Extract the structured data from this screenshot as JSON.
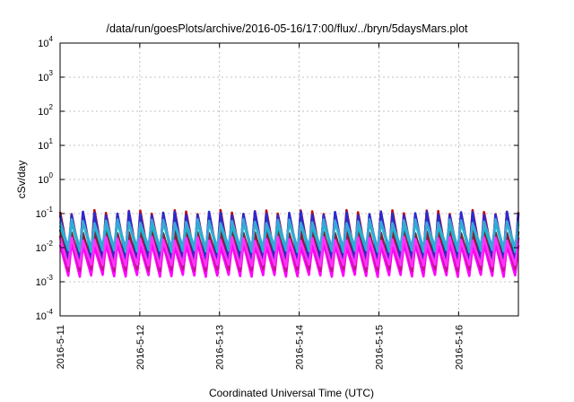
{
  "chart_data": {
    "type": "line",
    "title": "/data/run/goesPlots/archive/2016-05-16/17:00/flux/../bryn/5daysMars.plot",
    "xlabel": "Coordinated Universal Time (UTC)",
    "ylabel": "cSv/day",
    "x_range": [
      "2016-05-11",
      "2016-05-16 18:00"
    ],
    "x_tick_labels": [
      "2016-5-11",
      "2016-5-12",
      "2016-5-13",
      "2016-5-14",
      "2016-5-15",
      "2016-5-16"
    ],
    "y_scale": "log",
    "ylim": [
      0.0001,
      10000
    ],
    "y_ticks": [
      {
        "base": "10",
        "exp": "-4"
      },
      {
        "base": "10",
        "exp": "-3"
      },
      {
        "base": "10",
        "exp": "-2"
      },
      {
        "base": "10",
        "exp": "-1"
      },
      {
        "base": "10",
        "exp": "0"
      },
      {
        "base": "10",
        "exp": "1"
      },
      {
        "base": "10",
        "exp": "2"
      },
      {
        "base": "10",
        "exp": "3"
      },
      {
        "base": "10",
        "exp": "4"
      }
    ],
    "grid": true,
    "pattern": {
      "oscillations_per_day": 7,
      "note_values": "sawtooth oscillations between roughly 0.0015 and 0.11 cSv/day"
    },
    "series": [
      {
        "color": "#ff00ff",
        "peak": 0.012,
        "trough": 0.0015
      },
      {
        "color": "#c0168a",
        "peak": 0.02,
        "trough": 0.0022
      },
      {
        "color": "#8b1c3a",
        "peak": 0.03,
        "trough": 0.0035
      },
      {
        "color": "#c01010",
        "peak": 0.11,
        "trough": 0.006
      },
      {
        "color": "#2a2ad0",
        "peak": 0.1,
        "trough": 0.005
      },
      {
        "color": "#00c8c8",
        "peak": 0.05,
        "trough": 0.008
      },
      {
        "color": "#3aa6d8",
        "peak": 0.06,
        "trough": 0.01
      },
      {
        "color": "#ff33ff",
        "peak": 0.018,
        "trough": 0.003
      }
    ]
  }
}
